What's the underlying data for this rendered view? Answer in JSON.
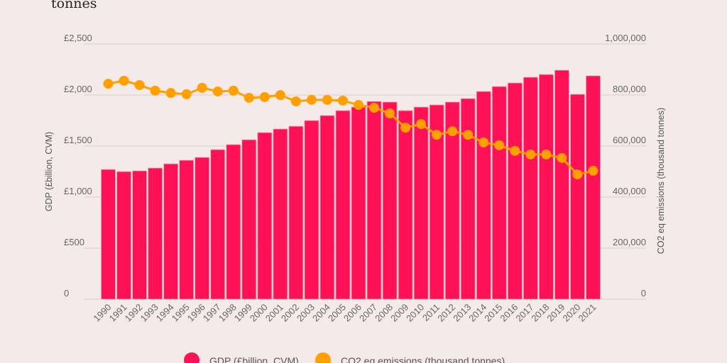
{
  "title": "tonnes",
  "chart_data": {
    "type": "bar+line",
    "title": "tonnes",
    "categories": [
      "1990",
      "1991",
      "1992",
      "1993",
      "1994",
      "1995",
      "1996",
      "1997",
      "1998",
      "1999",
      "2000",
      "2001",
      "2002",
      "2003",
      "2004",
      "2005",
      "2006",
      "2007",
      "2008",
      "2009",
      "2010",
      "2011",
      "2012",
      "2013",
      "2014",
      "2015",
      "2016",
      "2017",
      "2018",
      "2019",
      "2020",
      "2021"
    ],
    "series": [
      {
        "name": "GDP (£billion, CVM)",
        "type": "bar",
        "axis": "left",
        "color": "#ff1155",
        "values": [
          1271,
          1250,
          1257,
          1285,
          1326,
          1361,
          1389,
          1465,
          1514,
          1562,
          1632,
          1667,
          1694,
          1750,
          1799,
          1847,
          1882,
          1937,
          1931,
          1847,
          1882,
          1903,
          1931,
          1965,
          2035,
          2083,
          2118,
          2174,
          2201,
          2243,
          2007,
          2188
        ]
      },
      {
        "name": "CO2 eq emissions (thousand tonnes)",
        "type": "line",
        "axis": "right",
        "color": "#ffa000",
        "values": [
          844000,
          856000,
          839000,
          817000,
          808000,
          803000,
          828000,
          814000,
          817000,
          789000,
          792000,
          800000,
          775000,
          781000,
          781000,
          778000,
          761000,
          750000,
          728000,
          672000,
          686000,
          644000,
          658000,
          644000,
          614000,
          603000,
          581000,
          567000,
          567000,
          553000,
          489000,
          503000
        ]
      }
    ],
    "ylabel": "GDP (£billion, CVM)",
    "y2label": "CO2 eq emissions (thousand tonnes)",
    "ylim": [
      0,
      2500
    ],
    "y2lim": [
      0,
      1000000
    ],
    "yticks": [
      "0",
      "£500",
      "£1,000",
      "£1,500",
      "£2,000",
      "£2,500"
    ],
    "y2ticks": [
      "0",
      "200,000",
      "400,000",
      "600,000",
      "800,000",
      "1,000,000"
    ],
    "grid": true,
    "legend": "bottom"
  }
}
